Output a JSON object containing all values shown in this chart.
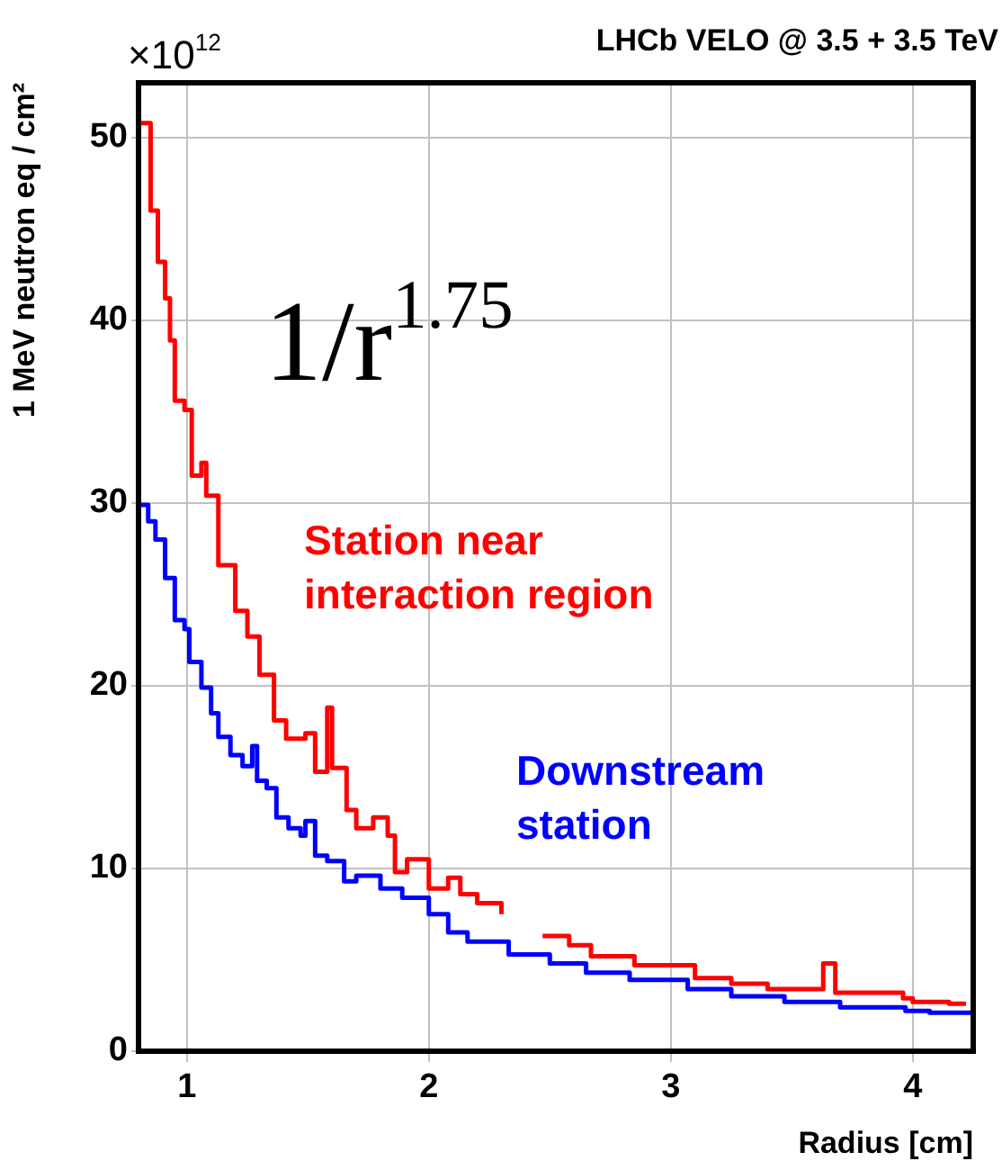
{
  "chart_data": {
    "type": "step",
    "title": "LHCb VELO @ 3.5 + 3.5 TeV",
    "xlabel": "Radius [cm]",
    "ylabel": "1 MeV neutron eq / cm²",
    "annotations": [
      "×10$^{12}$",
      "1/r$^{1.75}$"
    ],
    "xlim": [
      0.8,
      4.25
    ],
    "xticks": [
      1,
      2,
      3,
      4
    ],
    "ylim": [
      0,
      53
    ],
    "yticks": [
      0,
      10,
      20,
      30,
      40,
      50
    ],
    "grid": true,
    "legend": false,
    "marker": "none",
    "line_style": "solid",
    "series": [
      {
        "name": "Station near interaction region",
        "color": "#ff0000",
        "x": [
          0.81,
          0.85,
          0.88,
          0.91,
          0.93,
          0.95,
          0.99,
          1.02,
          1.06,
          1.08,
          1.13,
          1.2,
          1.25,
          1.3,
          1.36,
          1.41,
          1.49,
          1.53,
          1.58,
          1.6,
          1.66,
          1.7,
          1.77,
          1.83,
          1.86,
          1.91,
          2.0,
          2.08,
          2.13,
          2.2,
          2.3,
          2.4,
          2.47,
          2.58,
          2.67,
          2.85,
          3.0,
          3.1,
          3.25,
          3.4,
          3.63,
          3.68,
          3.96,
          4.0,
          4.15,
          4.22
        ],
        "values": [
          50.8,
          46.0,
          43.2,
          41.2,
          38.9,
          35.6,
          35.1,
          31.5,
          32.2,
          30.4,
          26.6,
          24.1,
          22.7,
          20.6,
          18.1,
          17.1,
          17.4,
          15.3,
          18.8,
          15.5,
          13.2,
          12.2,
          12.8,
          11.8,
          9.8,
          10.5,
          8.9,
          9.5,
          8.6,
          8.1,
          7.5,
          null,
          6.3,
          5.8,
          5.2,
          4.7,
          4.7,
          4.0,
          3.7,
          3.4,
          4.8,
          3.2,
          2.9,
          2.7,
          2.6,
          2.6
        ]
      },
      {
        "name": "Downstream station",
        "color": "#0000ff",
        "x": [
          0.81,
          0.84,
          0.87,
          0.91,
          0.95,
          0.99,
          1.01,
          1.06,
          1.1,
          1.13,
          1.18,
          1.23,
          1.27,
          1.29,
          1.33,
          1.37,
          1.42,
          1.47,
          1.49,
          1.53,
          1.58,
          1.65,
          1.7,
          1.8,
          1.89,
          2.0,
          2.08,
          2.16,
          2.33,
          2.5,
          2.65,
          2.83,
          3.07,
          3.25,
          3.47,
          3.7,
          3.97,
          4.07,
          4.24
        ],
        "values": [
          29.9,
          29.0,
          28.0,
          25.9,
          23.6,
          23.1,
          21.3,
          19.9,
          18.5,
          17.2,
          16.2,
          15.6,
          16.7,
          14.8,
          14.4,
          12.8,
          12.2,
          11.8,
          12.6,
          10.7,
          10.4,
          9.3,
          9.6,
          8.9,
          8.4,
          7.5,
          6.5,
          6.0,
          5.3,
          4.8,
          4.3,
          3.9,
          3.4,
          3.0,
          2.7,
          2.4,
          2.2,
          2.1,
          2.1
        ]
      }
    ]
  }
}
